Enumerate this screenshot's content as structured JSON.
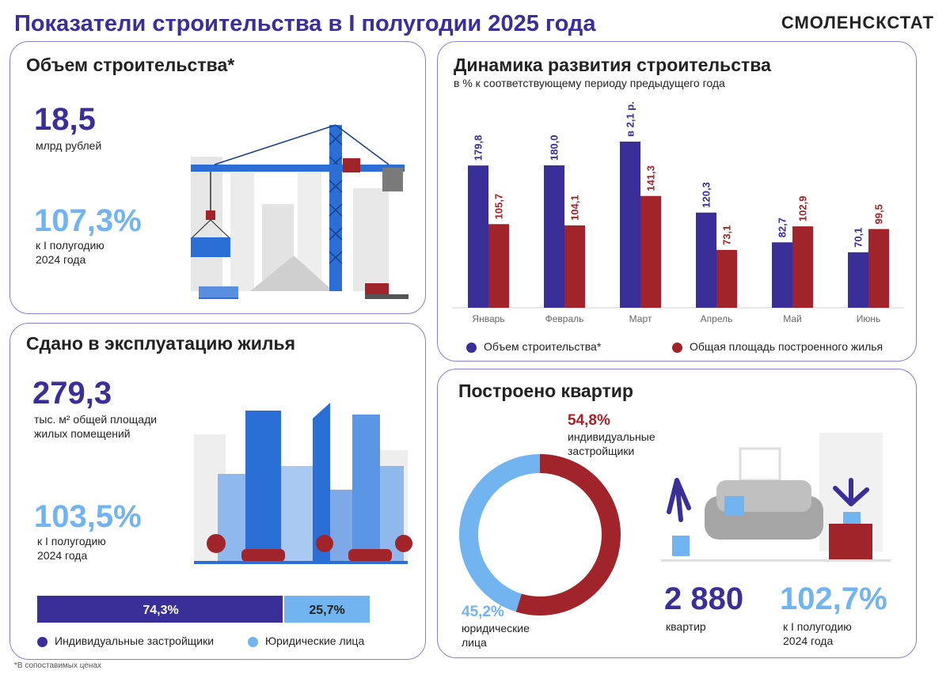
{
  "header": {
    "title": "Показатели строительства в I полугодии 2025 года",
    "brand": "СМОЛЕНСКСТАТ"
  },
  "volume": {
    "title": "Объем строительства*",
    "value": "18,5",
    "unit": "млрд рублей",
    "percent": "107,3%",
    "percent_note_1": "к  I полугодию",
    "percent_note_2": "2024 года"
  },
  "housing": {
    "title": "Сдано в эксплуатацию жилья",
    "value": "279,3",
    "unit_1": "тыс. м² общей площади",
    "unit_2": "жилых помещений",
    "percent": "103,5%",
    "percent_note_1": "к I полугодию",
    "percent_note_2": "2024 года",
    "split_bar": {
      "individual_share": 74.3,
      "legal_share": 25.7,
      "individual_label": "74,3%",
      "legal_label": "25,7%"
    },
    "legend_individual": "Индивидуальные застройщики",
    "legend_legal": "Юридические лица",
    "colors": {
      "individual": "#3a2e99",
      "legal": "#72b4f0"
    }
  },
  "dynamics": {
    "title": "Динамика развития строительства",
    "subtitle": "в % к соответствующему периоду предыдущего года"
  },
  "chart_data": {
    "type": "bar",
    "categories": [
      "Январь",
      "Февраль",
      "Март",
      "Апрель",
      "Май",
      "Июнь"
    ],
    "series": [
      {
        "name": "Объем строительства*",
        "values": [
          179.8,
          180.0,
          210.0,
          120.3,
          82.7,
          70.1
        ],
        "labels": [
          "179,8",
          "180,0",
          "в 2,1 р.",
          "120,3",
          "82,7",
          "70,1"
        ],
        "color": "#3a2e99"
      },
      {
        "name": "Общая площадь построенного жилья",
        "values": [
          105.7,
          104.1,
          141.3,
          73.1,
          102.9,
          99.5
        ],
        "labels": [
          "105,7",
          "104,1",
          "141,3",
          "73,1",
          "102,9",
          "99,5"
        ],
        "color": "#a0242a"
      }
    ],
    "legend": "bottom"
  },
  "apartments": {
    "title": "Построено квартир",
    "individual_pct": "54,8%",
    "individual_label_1": "индивидуальные",
    "individual_label_2": "застройщики",
    "legal_pct": "45,2%",
    "legal_label_1": "юридические",
    "legal_label_2": "лица",
    "donut": {
      "individual_share": 54.8,
      "legal_share": 45.2
    },
    "count": "2 880",
    "count_unit": "квартир",
    "percent": "102,7%",
    "percent_note_1": "к I полугодию",
    "percent_note_2": "2024 года",
    "colors": {
      "individual": "#a0242a",
      "legal": "#72b4f0"
    }
  },
  "footnote": "*В сопоставимых ценах"
}
